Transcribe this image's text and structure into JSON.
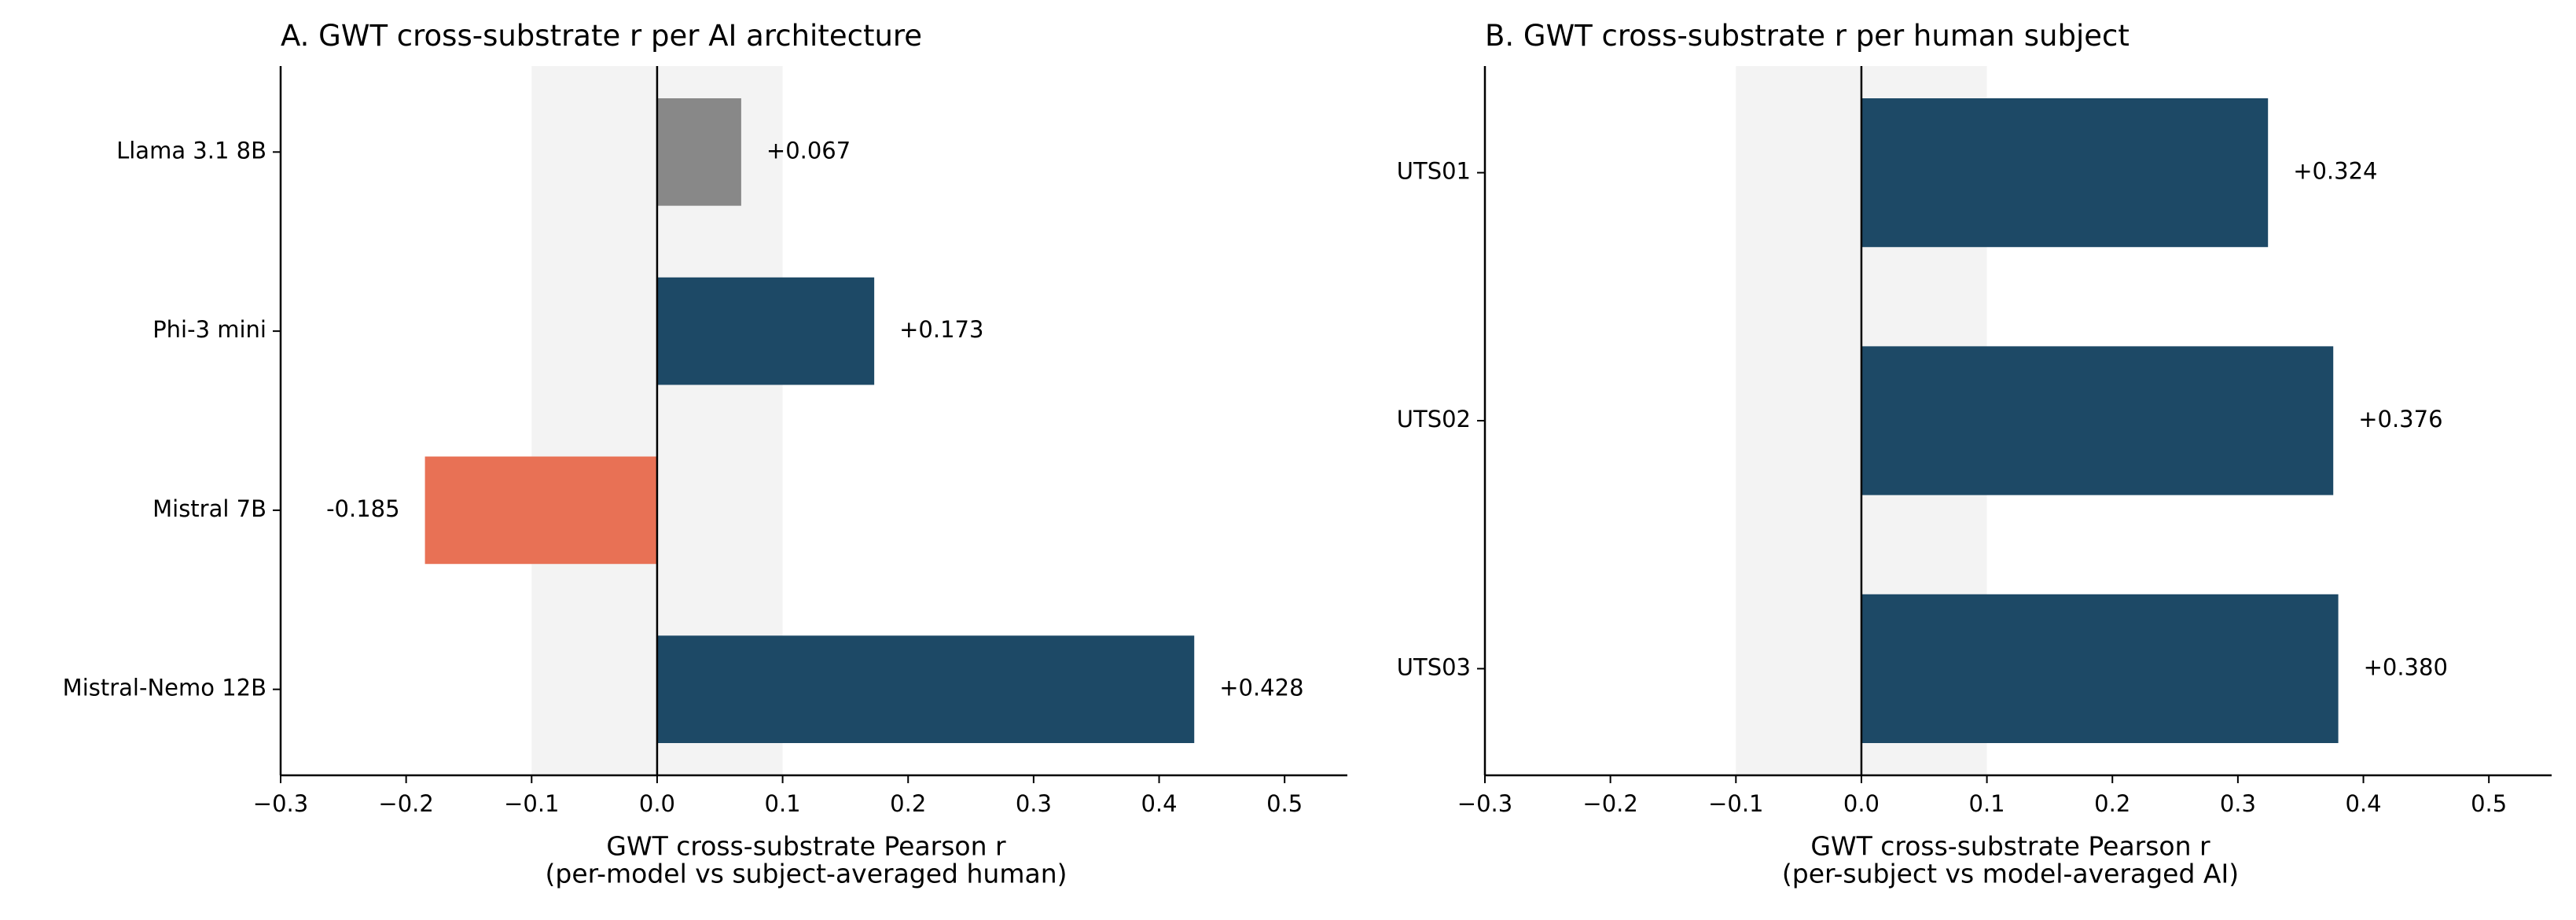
{
  "chart_data": [
    {
      "type": "bar",
      "orientation": "horizontal",
      "title": "A. GWT cross-substrate r per AI architecture",
      "categories": [
        "Llama 3.1 8B",
        "Phi-3 mini",
        "Mistral 7B",
        "Mistral-Nemo 12B"
      ],
      "values": [
        0.067,
        0.173,
        -0.185,
        0.428
      ],
      "value_labels": [
        "+0.067",
        "+0.173",
        "-0.185",
        "+0.428"
      ],
      "colors": [
        "#888888",
        "#1d4966",
        "#e87155",
        "#1d4966"
      ],
      "xlim": [
        -0.3,
        0.55
      ],
      "xticks": [
        {
          "value": -0.3,
          "label": "−0.3"
        },
        {
          "value": -0.2,
          "label": "−0.2"
        },
        {
          "value": -0.1,
          "label": "−0.1"
        },
        {
          "value": 0.0,
          "label": "0.0"
        },
        0.1,
        0.2,
        0.3,
        0.4,
        0.5
      ],
      "shade": [
        -0.1,
        0.1
      ],
      "xlabel": [
        "GWT cross-substrate Pearson r",
        "(per-model vs subject-averaged human)"
      ]
    },
    {
      "type": "bar",
      "orientation": "horizontal",
      "title": "B. GWT cross-substrate r per human subject",
      "categories": [
        "UTS01",
        "UTS02",
        "UTS03"
      ],
      "values": [
        0.324,
        0.376,
        0.38
      ],
      "value_labels": [
        "+0.324",
        "+0.376",
        "+0.380"
      ],
      "colors": [
        "#1d4966",
        "#1d4966",
        "#1d4966"
      ],
      "xlim": [
        -0.3,
        0.55
      ],
      "xticks": [
        {
          "value": -0.3,
          "label": "−0.3"
        },
        {
          "value": -0.2,
          "label": "−0.2"
        },
        {
          "value": -0.1,
          "label": "−0.1"
        },
        {
          "value": 0.0,
          "label": "0.0"
        },
        0.1,
        0.2,
        0.3,
        0.4,
        0.5
      ],
      "shade": [
        -0.1,
        0.1
      ],
      "xlabel": [
        "GWT cross-substrate Pearson r",
        "(per-subject vs model-averaged AI)"
      ]
    }
  ]
}
